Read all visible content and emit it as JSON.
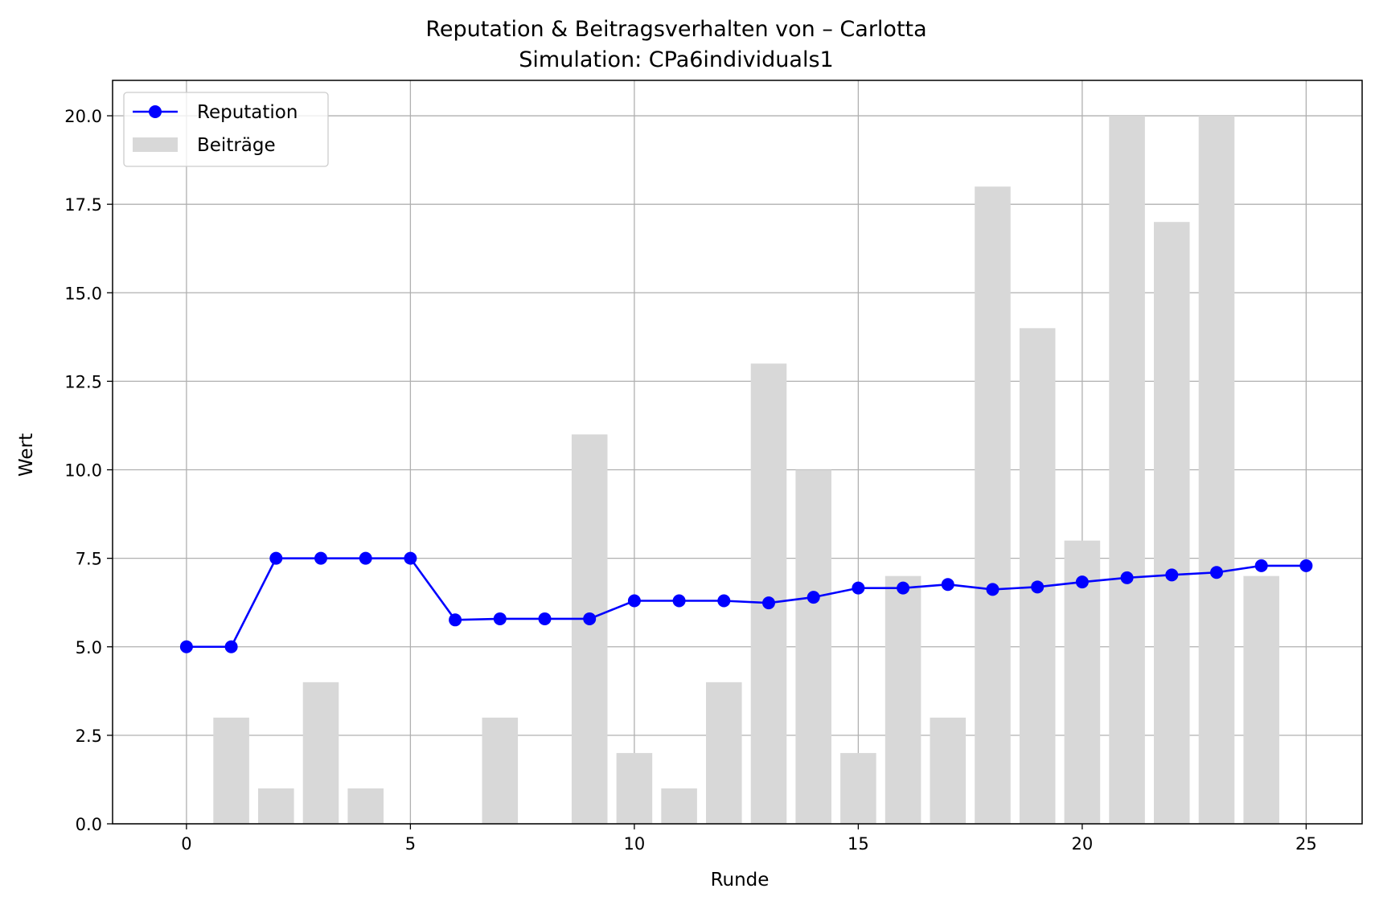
{
  "chart_data": {
    "type": "bar+line",
    "title": "Reputation & Beitragsverhalten von – Carlotta",
    "subtitle": "Simulation: CPa6individuals1",
    "xlabel": "Runde",
    "ylabel": "Wert",
    "xlim": [
      -1.65,
      26.25
    ],
    "ylim": [
      0,
      21
    ],
    "xticks": [
      0,
      5,
      10,
      15,
      20,
      25
    ],
    "yticks": [
      0.0,
      2.5,
      5.0,
      7.5,
      10.0,
      12.5,
      15.0,
      17.5,
      20.0
    ],
    "grid": true,
    "legend_position": "upper-left",
    "x": [
      0,
      1,
      2,
      3,
      4,
      5,
      6,
      7,
      8,
      9,
      10,
      11,
      12,
      13,
      14,
      15,
      16,
      17,
      18,
      19,
      20,
      21,
      22,
      23,
      24,
      25
    ],
    "series": [
      {
        "name": "Reputation",
        "kind": "line",
        "color": "#0000ff",
        "marker": "circle",
        "values": [
          5.0,
          5.0,
          7.5,
          7.5,
          7.5,
          7.5,
          5.76,
          5.79,
          5.79,
          5.79,
          6.3,
          6.3,
          6.3,
          6.24,
          6.4,
          6.66,
          6.66,
          6.76,
          6.62,
          6.69,
          6.83,
          6.95,
          7.03,
          7.1,
          7.29,
          7.29
        ]
      },
      {
        "name": "Beiträge",
        "kind": "bar",
        "color": "#d8d8d8",
        "values": [
          0,
          3,
          1,
          4,
          1,
          0,
          0,
          3,
          0,
          11,
          2,
          1,
          4,
          13,
          10,
          2,
          7,
          3,
          18,
          14,
          8,
          20,
          17,
          20,
          7,
          0
        ]
      }
    ]
  }
}
